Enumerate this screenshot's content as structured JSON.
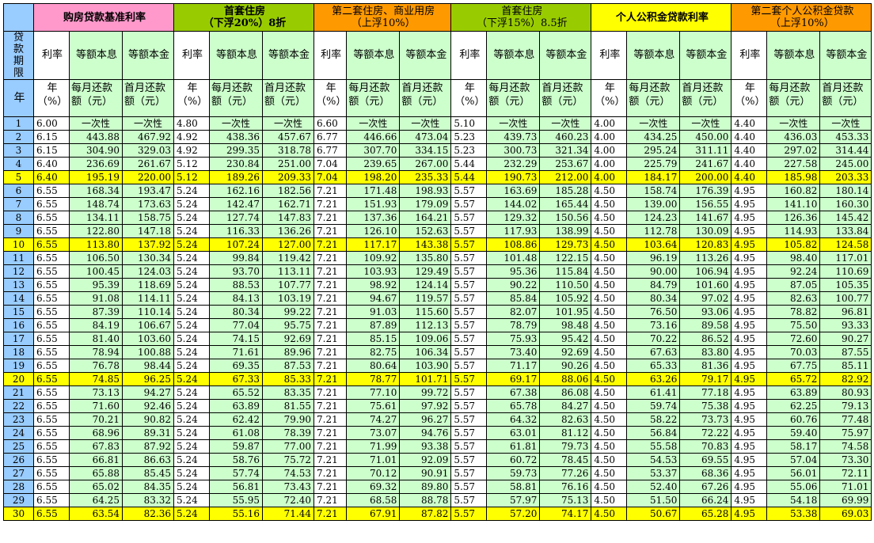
{
  "headers": {
    "groups": [
      {
        "line1": "购房贷款基准利率",
        "line2": "",
        "bold": true,
        "color": "pink"
      },
      {
        "line1": "首套住房",
        "line2": "（下浮20%）8折",
        "bold": true,
        "color": "bgreen"
      },
      {
        "line1": "第二套住房、商业用房",
        "line2": "（上浮10%）",
        "bold": false,
        "color": "orange"
      },
      {
        "line1": "首套住房",
        "line2": "（下浮15%）8.5折",
        "bold": false,
        "color": "bgreen"
      },
      {
        "line1": "个人公积金贷款利率",
        "line2": "",
        "bold": true,
        "color": "yellow"
      },
      {
        "line1": "第二套个人公积金贷款",
        "line2": "（上浮10%）",
        "bold": false,
        "color": "orange"
      }
    ],
    "period_label": "贷款期限",
    "year_label": "年",
    "sub": [
      "利率",
      "等额本息",
      "等额本金"
    ],
    "units": [
      "年（%）",
      "每月还款额（元）",
      "首月还款额（元）"
    ]
  },
  "one_time": "一次性",
  "highlight_years": [
    5,
    10,
    20,
    30
  ],
  "rows": [
    {
      "year": "1",
      "cells": [
        "6.00",
        "",
        "",
        "4.80",
        "",
        "",
        "6.60",
        "",
        "",
        "5.10",
        "",
        "",
        "4.00",
        "",
        "",
        "4.40",
        "",
        ""
      ]
    },
    {
      "year": "2",
      "cells": [
        "6.15",
        "443.88",
        "467.92",
        "4.92",
        "438.36",
        "457.67",
        "6.77",
        "446.66",
        "473.04",
        "5.23",
        "439.73",
        "460.23",
        "4.00",
        "434.25",
        "450.00",
        "4.40",
        "436.03",
        "453.33"
      ]
    },
    {
      "year": "3",
      "cells": [
        "6.15",
        "304.90",
        "329.03",
        "4.92",
        "299.35",
        "318.78",
        "6.77",
        "307.70",
        "334.15",
        "5.23",
        "300.73",
        "321.34",
        "4.00",
        "295.24",
        "311.11",
        "4.40",
        "297.02",
        "314.44"
      ]
    },
    {
      "year": "4",
      "cells": [
        "6.40",
        "236.69",
        "261.67",
        "5.12",
        "230.84",
        "251.00",
        "7.04",
        "239.65",
        "267.00",
        "5.44",
        "232.29",
        "253.67",
        "4.00",
        "225.79",
        "241.67",
        "4.40",
        "227.58",
        "245.00"
      ]
    },
    {
      "year": "5",
      "cells": [
        "6.40",
        "195.19",
        "220.00",
        "5.12",
        "189.26",
        "209.33",
        "7.04",
        "198.20",
        "235.33",
        "5.44",
        "190.73",
        "212.00",
        "4.00",
        "184.17",
        "200.00",
        "4.40",
        "185.98",
        "203.33"
      ]
    },
    {
      "year": "6",
      "cells": [
        "6.55",
        "168.34",
        "193.47",
        "5.24",
        "162.16",
        "182.56",
        "7.21",
        "171.48",
        "198.93",
        "5.57",
        "163.69",
        "185.28",
        "4.50",
        "158.74",
        "176.39",
        "4.95",
        "160.82",
        "180.14"
      ]
    },
    {
      "year": "7",
      "cells": [
        "6.55",
        "148.74",
        "173.63",
        "5.24",
        "142.47",
        "162.71",
        "7.21",
        "151.93",
        "179.09",
        "5.57",
        "144.02",
        "165.44",
        "4.50",
        "139.00",
        "156.55",
        "4.95",
        "141.10",
        "160.30"
      ]
    },
    {
      "year": "8",
      "cells": [
        "6.55",
        "134.11",
        "158.75",
        "5.24",
        "127.74",
        "147.83",
        "7.21",
        "137.36",
        "164.21",
        "5.57",
        "129.32",
        "150.56",
        "4.50",
        "124.23",
        "141.67",
        "4.95",
        "126.36",
        "145.42"
      ]
    },
    {
      "year": "9",
      "cells": [
        "6.55",
        "122.80",
        "147.18",
        "5.24",
        "116.33",
        "136.26",
        "7.21",
        "126.10",
        "152.63",
        "5.57",
        "117.93",
        "138.99",
        "4.50",
        "112.78",
        "130.09",
        "4.95",
        "114.93",
        "133.84"
      ]
    },
    {
      "year": "10",
      "cells": [
        "6.55",
        "113.80",
        "137.92",
        "5.24",
        "107.24",
        "127.00",
        "7.21",
        "117.17",
        "143.38",
        "5.57",
        "108.86",
        "129.73",
        "4.50",
        "103.64",
        "120.83",
        "4.95",
        "105.82",
        "124.58"
      ]
    },
    {
      "year": "11",
      "cells": [
        "6.55",
        "106.50",
        "130.34",
        "5.24",
        "99.84",
        "119.42",
        "7.21",
        "109.92",
        "135.80",
        "5.57",
        "101.48",
        "122.15",
        "4.50",
        "96.19",
        "113.26",
        "4.95",
        "98.40",
        "117.01"
      ]
    },
    {
      "year": "12",
      "cells": [
        "6.55",
        "100.45",
        "124.03",
        "5.24",
        "93.70",
        "113.11",
        "7.21",
        "103.93",
        "129.49",
        "5.57",
        "95.36",
        "115.84",
        "4.50",
        "90.00",
        "106.94",
        "4.95",
        "92.24",
        "110.69"
      ]
    },
    {
      "year": "13",
      "cells": [
        "6.55",
        "95.39",
        "118.69",
        "5.24",
        "88.53",
        "107.77",
        "7.21",
        "98.92",
        "124.14",
        "5.57",
        "90.22",
        "110.50",
        "4.50",
        "84.79",
        "101.60",
        "4.95",
        "87.05",
        "105.35"
      ]
    },
    {
      "year": "14",
      "cells": [
        "6.55",
        "91.08",
        "114.11",
        "5.24",
        "84.13",
        "103.19",
        "7.21",
        "94.67",
        "119.57",
        "5.57",
        "85.84",
        "105.92",
        "4.50",
        "80.34",
        "97.02",
        "4.95",
        "82.63",
        "100.77"
      ]
    },
    {
      "year": "15",
      "cells": [
        "6.55",
        "87.39",
        "110.14",
        "5.24",
        "80.34",
        "99.22",
        "7.21",
        "91.03",
        "115.60",
        "5.57",
        "82.07",
        "101.95",
        "4.50",
        "76.50",
        "93.06",
        "4.95",
        "78.82",
        "96.81"
      ]
    },
    {
      "year": "16",
      "cells": [
        "6.55",
        "84.19",
        "106.67",
        "5.24",
        "77.04",
        "95.75",
        "7.21",
        "87.89",
        "112.13",
        "5.57",
        "78.79",
        "98.48",
        "4.50",
        "73.16",
        "89.58",
        "4.95",
        "75.50",
        "93.33"
      ]
    },
    {
      "year": "17",
      "cells": [
        "6.55",
        "81.40",
        "103.60",
        "5.24",
        "74.15",
        "92.69",
        "7.21",
        "85.15",
        "109.06",
        "5.57",
        "75.93",
        "95.42",
        "4.50",
        "70.22",
        "86.52",
        "4.95",
        "72.60",
        "90.27"
      ]
    },
    {
      "year": "18",
      "cells": [
        "6.55",
        "78.94",
        "100.88",
        "5.24",
        "71.61",
        "89.96",
        "7.21",
        "82.75",
        "106.34",
        "5.57",
        "73.40",
        "92.69",
        "4.50",
        "67.63",
        "83.80",
        "4.95",
        "70.03",
        "87.55"
      ]
    },
    {
      "year": "19",
      "cells": [
        "6.55",
        "76.78",
        "98.44",
        "5.24",
        "69.35",
        "87.53",
        "7.21",
        "80.64",
        "103.90",
        "5.57",
        "71.17",
        "90.26",
        "4.50",
        "65.33",
        "81.36",
        "4.95",
        "67.75",
        "85.11"
      ]
    },
    {
      "year": "20",
      "cells": [
        "6.55",
        "74.85",
        "96.25",
        "5.24",
        "67.33",
        "85.33",
        "7.21",
        "78.77",
        "101.71",
        "5.57",
        "69.17",
        "88.06",
        "4.50",
        "63.26",
        "79.17",
        "4.95",
        "65.72",
        "82.92"
      ]
    },
    {
      "year": "21",
      "cells": [
        "6.55",
        "73.13",
        "94.27",
        "5.24",
        "65.52",
        "83.35",
        "7.21",
        "77.10",
        "99.72",
        "5.57",
        "67.38",
        "86.08",
        "4.50",
        "61.41",
        "77.18",
        "4.95",
        "63.89",
        "80.93"
      ]
    },
    {
      "year": "22",
      "cells": [
        "6.55",
        "71.60",
        "92.46",
        "5.24",
        "63.89",
        "81.55",
        "7.21",
        "75.61",
        "97.92",
        "5.57",
        "65.78",
        "84.27",
        "4.50",
        "59.74",
        "75.38",
        "4.95",
        "62.25",
        "79.13"
      ]
    },
    {
      "year": "23",
      "cells": [
        "6.55",
        "70.21",
        "90.82",
        "5.24",
        "62.42",
        "79.90",
        "7.21",
        "74.27",
        "96.27",
        "5.57",
        "64.32",
        "82.63",
        "4.50",
        "58.22",
        "73.73",
        "4.95",
        "60.76",
        "77.48"
      ]
    },
    {
      "year": "24",
      "cells": [
        "6.55",
        "68.96",
        "89.31",
        "5.24",
        "61.08",
        "78.39",
        "7.21",
        "73.07",
        "94.76",
        "5.57",
        "63.01",
        "81.12",
        "4.50",
        "56.84",
        "72.22",
        "4.95",
        "59.40",
        "75.97"
      ]
    },
    {
      "year": "25",
      "cells": [
        "6.55",
        "67.83",
        "87.92",
        "5.24",
        "59.87",
        "77.00",
        "7.21",
        "71.99",
        "93.38",
        "5.57",
        "61.81",
        "79.73",
        "4.50",
        "55.58",
        "70.83",
        "4.95",
        "58.17",
        "74.58"
      ]
    },
    {
      "year": "26",
      "cells": [
        "6.55",
        "66.81",
        "86.63",
        "5.24",
        "58.76",
        "75.72",
        "7.21",
        "71.01",
        "92.09",
        "5.57",
        "60.72",
        "78.45",
        "4.50",
        "54.53",
        "69.55",
        "4.95",
        "57.04",
        "73.30"
      ]
    },
    {
      "year": "27",
      "cells": [
        "6.55",
        "65.88",
        "85.45",
        "5.24",
        "57.74",
        "74.53",
        "7.21",
        "70.12",
        "90.91",
        "5.57",
        "59.73",
        "77.26",
        "4.50",
        "53.37",
        "68.36",
        "4.95",
        "56.01",
        "72.11"
      ]
    },
    {
      "year": "28",
      "cells": [
        "6.55",
        "65.02",
        "84.35",
        "5.24",
        "56.81",
        "73.43",
        "7.21",
        "69.32",
        "89.80",
        "5.57",
        "58.81",
        "76.16",
        "4.50",
        "52.40",
        "67.26",
        "4.95",
        "55.06",
        "71.01"
      ]
    },
    {
      "year": "29",
      "cells": [
        "6.55",
        "64.25",
        "83.32",
        "5.24",
        "55.95",
        "72.40",
        "7.21",
        "68.58",
        "88.78",
        "5.57",
        "57.97",
        "75.13",
        "4.50",
        "51.50",
        "66.24",
        "4.95",
        "54.18",
        "69.99"
      ]
    },
    {
      "year": "30",
      "cells": [
        "6.55",
        "63.54",
        "82.36",
        "5.24",
        "55.16",
        "71.44",
        "7.21",
        "67.91",
        "87.82",
        "5.57",
        "57.20",
        "74.17",
        "4.50",
        "50.67",
        "65.28",
        "4.95",
        "53.38",
        "69.03"
      ]
    }
  ]
}
